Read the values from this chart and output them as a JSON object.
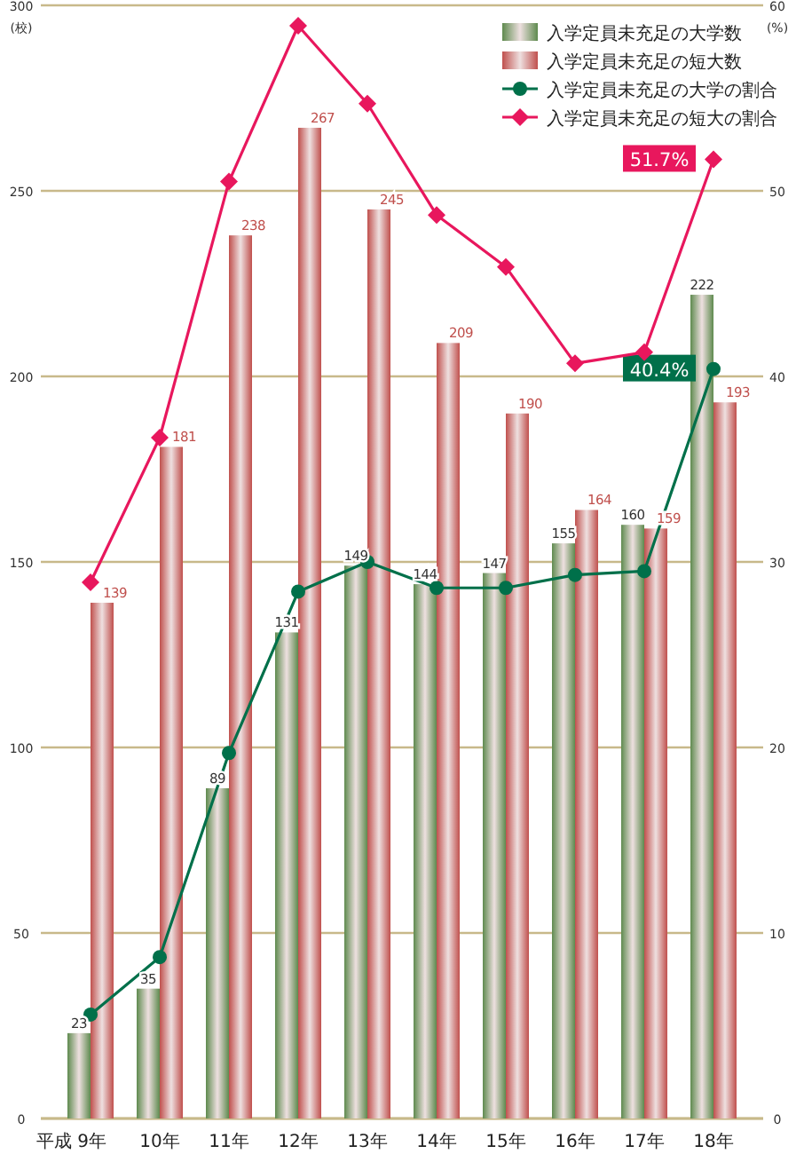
{
  "chart_data": {
    "type": "bar",
    "categories": [
      "平成 9年",
      "10年",
      "11年",
      "12年",
      "13年",
      "14年",
      "15年",
      "16年",
      "17年",
      "18年"
    ],
    "ylabel": "(校)",
    "y2label": "(%)",
    "ylim": [
      0,
      300
    ],
    "yticks": [
      0,
      50,
      100,
      150,
      200,
      250,
      300
    ],
    "y2lim": [
      0,
      60
    ],
    "y2ticks": [
      0,
      10,
      20,
      30,
      40,
      50,
      60
    ],
    "grid": "y",
    "legend": "top right",
    "series": [
      {
        "name": "入学定員未充足の大学数",
        "color": "#5e8a4e",
        "values": [
          23,
          35,
          89,
          131,
          149,
          144,
          147,
          155,
          160,
          222
        ],
        "value_labels": [
          "23",
          "35",
          "89",
          "131",
          "149",
          "144",
          "147",
          "155",
          "160",
          "222"
        ]
      },
      {
        "name": "入学定員未充足の短大数",
        "color": "#c0504d",
        "values": [
          139,
          181,
          238,
          267,
          245,
          209,
          190,
          164,
          159,
          193
        ],
        "value_labels": [
          "139",
          "181",
          "238",
          "267",
          "245",
          "209",
          "190",
          "164",
          "159",
          "193"
        ]
      },
      {
        "name": "入学定員未充足の大学の割合",
        "type": "line",
        "axis": "y2",
        "color": "#00704a",
        "marker": "circle",
        "values": [
          5.6,
          8.7,
          19.7,
          28.4,
          30.0,
          28.6,
          28.6,
          29.3,
          29.5,
          40.4
        ],
        "value_labels": [
          null,
          null,
          null,
          null,
          null,
          null,
          null,
          null,
          null,
          "40.4%"
        ]
      },
      {
        "name": "入学定員未充足の短大の割合",
        "type": "line",
        "axis": "y2",
        "color": "#e8175d",
        "marker": "diamond",
        "values": [
          28.9,
          36.7,
          50.5,
          58.9,
          54.7,
          48.7,
          45.9,
          40.7,
          41.3,
          51.7
        ],
        "value_labels": [
          null,
          null,
          null,
          null,
          null,
          null,
          null,
          null,
          null,
          "51.7%"
        ]
      }
    ]
  }
}
